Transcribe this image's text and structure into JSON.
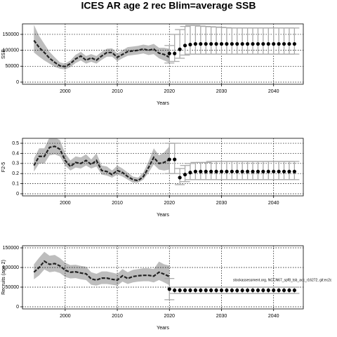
{
  "chart_data": [
    {
      "type": "line",
      "title": "ICES AR age 2 rec Blim=average SSB",
      "ylabel": "SSB",
      "xlabel": "Years",
      "xlim": [
        1991.8,
        2045.7
      ],
      "xticks": [
        2000,
        2010,
        2020,
        2030,
        2040
      ],
      "ylim": [
        -6700,
        183000
      ],
      "yticks": [
        0,
        50000,
        100000,
        150000
      ],
      "grid": true,
      "x": [
        1994,
        1995,
        1996,
        1997,
        1998,
        1999,
        2000,
        2001,
        2002,
        2003,
        2004,
        2005,
        2006,
        2007,
        2008,
        2009,
        2010,
        2011,
        2012,
        2013,
        2014,
        2015,
        2016,
        2017,
        2018,
        2019,
        2020
      ],
      "values": [
        131000,
        109000,
        93000,
        75000,
        62000,
        51000,
        49000,
        58000,
        73000,
        82000,
        69000,
        76000,
        69000,
        82000,
        93000,
        93000,
        78000,
        87000,
        96000,
        98000,
        100000,
        104000,
        100000,
        104000,
        91000,
        87000,
        78000
      ],
      "lower": [
        93000,
        80000,
        68000,
        58000,
        48000,
        42000,
        40000,
        47000,
        60000,
        68000,
        58000,
        64000,
        58000,
        70000,
        80000,
        80000,
        66000,
        75000,
        83000,
        85000,
        87000,
        90000,
        85000,
        88000,
        75000,
        68000,
        60000
      ],
      "upper": [
        180000,
        145000,
        120000,
        95000,
        78000,
        62000,
        58000,
        68000,
        86000,
        95000,
        82000,
        88000,
        82000,
        95000,
        105000,
        106000,
        90000,
        100000,
        110000,
        112000,
        114000,
        118000,
        115000,
        120000,
        108000,
        108000,
        105000
      ],
      "forecast_x": [
        2020,
        2021,
        2022,
        2023,
        2024,
        2025,
        2026,
        2027,
        2028,
        2029,
        2030,
        2031,
        2032,
        2033,
        2034,
        2035,
        2036,
        2037,
        2038,
        2039,
        2040,
        2041,
        2042,
        2043,
        2044
      ],
      "forecast": [
        90000,
        90000,
        103000,
        115000,
        118000,
        120000,
        120000,
        120000,
        120000,
        120000,
        120000,
        120000,
        120000,
        120000,
        120000,
        120000,
        120000,
        120000,
        120000,
        120000,
        120000,
        120000,
        120000,
        120000,
        120000
      ],
      "forecast_lower": [
        60000,
        65000,
        75000,
        85000,
        88000,
        88000,
        88000,
        88000,
        88000,
        88000,
        88000,
        88000,
        88000,
        88000,
        88000,
        88000,
        88000,
        88000,
        88000,
        88000,
        88000,
        88000,
        88000,
        88000,
        88000
      ],
      "forecast_upper": [
        115000,
        150000,
        165000,
        175000,
        178000,
        178000,
        176000,
        175000,
        174000,
        173000,
        172000,
        171000,
        170000,
        170000,
        170000,
        170000,
        170000,
        170000,
        170000,
        170000,
        170000,
        170000,
        170000,
        170000,
        170000
      ]
    },
    {
      "type": "line",
      "ylabel": "F2-5",
      "xlabel": "Years",
      "xlim": [
        1991.8,
        2045.7
      ],
      "xticks": [
        2000,
        2010,
        2020,
        2030,
        2040
      ],
      "ylim": [
        -0.021,
        0.549
      ],
      "yticks": [
        0,
        0.1,
        0.2,
        0.3,
        0.4,
        0.5
      ],
      "grid": true,
      "x": [
        1994,
        1995,
        1996,
        1997,
        1998,
        1999,
        2000,
        2001,
        2002,
        2003,
        2004,
        2005,
        2006,
        2007,
        2008,
        2009,
        2010,
        2011,
        2012,
        2013,
        2014,
        2015,
        2016,
        2017,
        2018,
        2019,
        2020
      ],
      "values": [
        0.28,
        0.37,
        0.37,
        0.46,
        0.47,
        0.44,
        0.33,
        0.27,
        0.31,
        0.3,
        0.33,
        0.29,
        0.33,
        0.23,
        0.22,
        0.19,
        0.23,
        0.21,
        0.17,
        0.14,
        0.13,
        0.17,
        0.26,
        0.36,
        0.3,
        0.31,
        0.34
      ],
      "lower": [
        0.22,
        0.3,
        0.3,
        0.38,
        0.39,
        0.37,
        0.28,
        0.23,
        0.26,
        0.25,
        0.28,
        0.25,
        0.27,
        0.19,
        0.18,
        0.16,
        0.19,
        0.17,
        0.14,
        0.11,
        0.11,
        0.14,
        0.21,
        0.29,
        0.24,
        0.23,
        0.24
      ],
      "upper": [
        0.35,
        0.45,
        0.45,
        0.56,
        0.56,
        0.53,
        0.4,
        0.33,
        0.37,
        0.36,
        0.39,
        0.34,
        0.4,
        0.28,
        0.27,
        0.23,
        0.28,
        0.25,
        0.21,
        0.17,
        0.16,
        0.21,
        0.32,
        0.45,
        0.38,
        0.41,
        0.47
      ],
      "forecast_x": [
        2020,
        2021,
        2022,
        2023,
        2024,
        2025,
        2026,
        2027,
        2028,
        2029,
        2030,
        2031,
        2032,
        2033,
        2034,
        2035,
        2036,
        2037,
        2038,
        2039,
        2040,
        2041,
        2042,
        2043,
        2044
      ],
      "forecast": [
        0.34,
        0.34,
        0.16,
        0.19,
        0.21,
        0.22,
        0.22,
        0.22,
        0.22,
        0.22,
        0.22,
        0.22,
        0.22,
        0.22,
        0.22,
        0.22,
        0.22,
        0.22,
        0.22,
        0.22,
        0.22,
        0.22,
        0.22,
        0.22,
        0.22
      ],
      "forecast_lower": [
        0.2,
        0.2,
        0.09,
        0.12,
        0.14,
        0.14,
        0.14,
        0.14,
        0.14,
        0.14,
        0.14,
        0.14,
        0.14,
        0.14,
        0.14,
        0.14,
        0.14,
        0.14,
        0.14,
        0.14,
        0.14,
        0.14,
        0.14,
        0.14,
        0.14
      ],
      "forecast_upper": [
        0.5,
        0.5,
        0.25,
        0.28,
        0.3,
        0.31,
        0.31,
        0.31,
        0.32,
        0.32,
        0.32,
        0.32,
        0.32,
        0.32,
        0.32,
        0.32,
        0.32,
        0.32,
        0.32,
        0.32,
        0.32,
        0.32,
        0.32,
        0.32,
        0.32
      ]
    },
    {
      "type": "line",
      "ylabel": "Recruits (age 2)",
      "xlabel": "Years",
      "annotation": "stockassessment.org, NCCN67_spf8_tsb_acc_r16272, git:ec2c",
      "xlim": [
        1991.8,
        2045.7
      ],
      "xticks": [
        2000,
        2010,
        2020,
        2030,
        2040
      ],
      "ylim": [
        -5400,
        155400
      ],
      "yticks": [
        0,
        50000,
        100000,
        150000
      ],
      "grid": true,
      "x": [
        1994,
        1995,
        1996,
        1997,
        1998,
        1999,
        2000,
        2001,
        2002,
        2003,
        2004,
        2005,
        2006,
        2007,
        2008,
        2009,
        2010,
        2011,
        2012,
        2013,
        2014,
        2015,
        2016,
        2017,
        2018,
        2019,
        2020
      ],
      "values": [
        88000,
        100000,
        116000,
        108000,
        110000,
        104000,
        93000,
        88000,
        89000,
        86000,
        84000,
        71000,
        68000,
        73000,
        73000,
        70000,
        68000,
        79000,
        72000,
        77000,
        79000,
        80000,
        80000,
        78000,
        88000,
        83000,
        77000
      ],
      "lower": [
        70000,
        80000,
        95000,
        88000,
        90000,
        86000,
        76000,
        72000,
        73000,
        70000,
        68000,
        56000,
        54000,
        58000,
        58000,
        56000,
        54000,
        64000,
        58000,
        62000,
        64000,
        65000,
        65000,
        62000,
        68000,
        62000,
        55000
      ],
      "upper": [
        108000,
        125000,
        140000,
        130000,
        132000,
        124000,
        112000,
        106000,
        107000,
        104000,
        102000,
        88000,
        84000,
        90000,
        90000,
        87000,
        84000,
        96000,
        88000,
        94000,
        96000,
        98000,
        98000,
        96000,
        115000,
        108000,
        105000
      ],
      "forecast_x": [
        2020,
        2021,
        2022,
        2023,
        2024,
        2025,
        2026,
        2027,
        2028,
        2029,
        2030,
        2031,
        2032,
        2033,
        2034,
        2035,
        2036,
        2037,
        2038,
        2039,
        2040,
        2041,
        2042,
        2043,
        2044
      ],
      "forecast": [
        45000,
        42000,
        42000,
        42000,
        42000,
        42000,
        42000,
        42000,
        42000,
        42000,
        42000,
        42000,
        42000,
        42000,
        42000,
        42000,
        42000,
        42000,
        42000,
        42000,
        42000,
        42000,
        42000,
        42000,
        42000
      ],
      "forecast_lower": [
        18000,
        34000,
        34000,
        34000,
        34000,
        34000,
        34000,
        34000,
        34000,
        34000,
        34000,
        34000,
        34000,
        34000,
        34000,
        34000,
        34000,
        34000,
        34000,
        34000,
        34000,
        34000,
        34000,
        34000,
        34000
      ],
      "forecast_upper": [
        72000,
        50000,
        50000,
        50000,
        50000,
        50000,
        50000,
        50000,
        50000,
        50000,
        50000,
        50000,
        50000,
        50000,
        50000,
        50000,
        50000,
        50000,
        50000,
        50000,
        50000,
        50000,
        50000,
        50000,
        50000
      ]
    }
  ]
}
